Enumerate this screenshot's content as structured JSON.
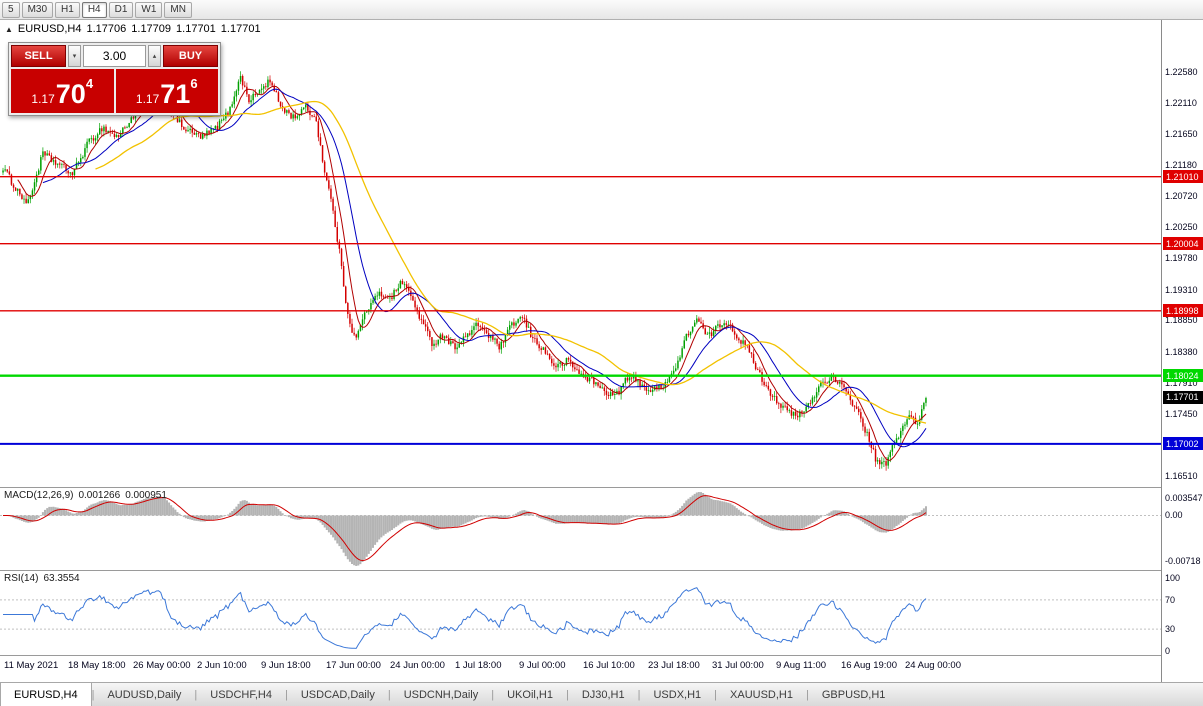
{
  "toolbar": {
    "timeframes": [
      "5",
      "M30",
      "H1",
      "H4",
      "D1",
      "W1",
      "MN"
    ],
    "active": "H4"
  },
  "quote_header": {
    "expand_icon": "▲",
    "symbol": "EURUSD,H4",
    "open": "1.17706",
    "high": "1.17709",
    "low": "1.17701",
    "close": "1.17701"
  },
  "trade_panel": {
    "sell_label": "SELL",
    "buy_label": "BUY",
    "volume": "3.00",
    "spin_down": "▾",
    "spin_up": "▴",
    "sell_price": {
      "base": "1.17",
      "pips": "70",
      "point": "4"
    },
    "buy_price": {
      "base": "1.17",
      "pips": "71",
      "point": "6"
    }
  },
  "price_axis": {
    "ticks": [
      "1.22580",
      "1.22110",
      "1.21650",
      "1.21180",
      "1.20720",
      "1.20250",
      "1.19780",
      "1.19310",
      "1.18850",
      "1.18380",
      "1.17910",
      "1.17450",
      "1.16980",
      "1.16510"
    ]
  },
  "price_lines": [
    {
      "price": 1.2101,
      "label": "1.21010",
      "color": "#e00000",
      "width": 1.4
    },
    {
      "price": 1.20004,
      "label": "1.20004",
      "color": "#e00000",
      "width": 1.4
    },
    {
      "price": 1.18998,
      "label": "1.18998",
      "color": "#e00000",
      "width": 1.4
    },
    {
      "price": 1.18024,
      "label": "1.18024",
      "color": "#00d800",
      "width": 2.4
    },
    {
      "price": 1.17002,
      "label": "1.17002",
      "color": "#0000d8",
      "width": 2
    }
  ],
  "current_price": {
    "price": 1.17701,
    "label": "1.17701",
    "bg": "#000000"
  },
  "indicators": {
    "macd": {
      "label": "MACD(12,26,9)",
      "value_main": "0.001266",
      "value_signal": "0.000951",
      "axis": [
        "0.003547",
        "0.00",
        "-0.00718"
      ]
    },
    "rsi": {
      "label": "RSI(14)",
      "value": "63.3554",
      "axis": [
        "100",
        "70",
        "30",
        "0"
      ]
    }
  },
  "time_axis": {
    "labels": [
      "11 May 2021",
      "18 May 18:00",
      "26 May 00:00",
      "2 Jun 10:00",
      "9 Jun 18:00",
      "17 Jun 00:00",
      "24 Jun 00:00",
      "1 Jul 18:00",
      "9 Jul 00:00",
      "16 Jul 10:00",
      "23 Jul 18:00",
      "31 Jul 00:00",
      "9 Aug 11:00",
      "16 Aug 19:00",
      "24 Aug 00:00"
    ]
  },
  "tabs": {
    "items": [
      "EURUSD,H4",
      "AUDUSD,Daily",
      "USDCHF,H4",
      "USDCAD,Daily",
      "USDCNH,Daily",
      "UKOil,H1",
      "DJ30,H1",
      "USDX,H1",
      "XAUUSD,H1",
      "GBPUSD,H1"
    ],
    "active_index": 0
  },
  "theme": {
    "up": "#00a000",
    "down": "#d40000",
    "macd_hist": "#b4b4b4",
    "macd_signal": "#d00000",
    "rsi_line": "#3c78d8",
    "level_line": "#c0c0c0",
    "axis_text": "#05051e"
  },
  "chart_data": {
    "type": "candlestick",
    "symbol": "EURUSD",
    "timeframe": "H4",
    "visible_range": {
      "price_min": 1.1651,
      "price_max": 1.2258,
      "time_start": "11 May 2021",
      "time_end": "24 Aug 2021"
    },
    "candle_count": 440,
    "price_anchors": [
      [
        0,
        1.2115
      ],
      [
        12,
        1.2085
      ],
      [
        25,
        1.206
      ],
      [
        40,
        1.2135
      ],
      [
        55,
        1.212
      ],
      [
        70,
        1.2105
      ],
      [
        85,
        1.215
      ],
      [
        100,
        1.2175
      ],
      [
        115,
        1.216
      ],
      [
        130,
        1.219
      ],
      [
        145,
        1.222
      ],
      [
        160,
        1.2235
      ],
      [
        172,
        1.219
      ],
      [
        185,
        1.217
      ],
      [
        200,
        1.216
      ],
      [
        215,
        1.2175
      ],
      [
        228,
        1.22
      ],
      [
        238,
        1.2252
      ],
      [
        248,
        1.2215
      ],
      [
        258,
        1.223
      ],
      [
        268,
        1.2245
      ],
      [
        280,
        1.2205
      ],
      [
        292,
        1.219
      ],
      [
        305,
        1.2205
      ],
      [
        315,
        1.2185
      ],
      [
        322,
        1.212
      ],
      [
        330,
        1.2065
      ],
      [
        338,
        1.199
      ],
      [
        346,
        1.19
      ],
      [
        354,
        1.1855
      ],
      [
        365,
        1.19
      ],
      [
        378,
        1.1925
      ],
      [
        390,
        1.192
      ],
      [
        402,
        1.1945
      ],
      [
        412,
        1.1915
      ],
      [
        422,
        1.188
      ],
      [
        432,
        1.185
      ],
      [
        443,
        1.1865
      ],
      [
        453,
        1.1845
      ],
      [
        465,
        1.186
      ],
      [
        478,
        1.188
      ],
      [
        490,
        1.186
      ],
      [
        500,
        1.1845
      ],
      [
        512,
        1.188
      ],
      [
        522,
        1.189
      ],
      [
        532,
        1.186
      ],
      [
        544,
        1.184
      ],
      [
        556,
        1.1815
      ],
      [
        568,
        1.1825
      ],
      [
        580,
        1.1805
      ],
      [
        592,
        1.1795
      ],
      [
        604,
        1.178
      ],
      [
        616,
        1.1772
      ],
      [
        628,
        1.18
      ],
      [
        640,
        1.1792
      ],
      [
        652,
        1.1778
      ],
      [
        664,
        1.179
      ],
      [
        676,
        1.1812
      ],
      [
        688,
        1.1865
      ],
      [
        698,
        1.1888
      ],
      [
        708,
        1.186
      ],
      [
        718,
        1.1875
      ],
      [
        728,
        1.1885
      ],
      [
        738,
        1.1862
      ],
      [
        750,
        1.184
      ],
      [
        762,
        1.18
      ],
      [
        774,
        1.1772
      ],
      [
        786,
        1.1752
      ],
      [
        798,
        1.174
      ],
      [
        810,
        1.1758
      ],
      [
        822,
        1.179
      ],
      [
        832,
        1.18
      ],
      [
        842,
        1.1788
      ],
      [
        852,
        1.1768
      ],
      [
        862,
        1.174
      ],
      [
        872,
        1.17
      ],
      [
        880,
        1.1668
      ],
      [
        888,
        1.1672
      ],
      [
        896,
        1.17
      ],
      [
        904,
        1.1725
      ],
      [
        912,
        1.1742
      ],
      [
        920,
        1.1728
      ],
      [
        928,
        1.177
      ]
    ],
    "moving_averages": [
      {
        "period": 8,
        "color": "#b00000",
        "width": 1
      },
      {
        "period": 20,
        "color": "#0000c0",
        "width": 1
      },
      {
        "period": 45,
        "color": "#f2c200",
        "width": 1.3
      }
    ],
    "macd": {
      "fast": 12,
      "slow": 26,
      "signal": 9,
      "last_main": 0.001266,
      "last_signal": 0.000951,
      "axis_max": 0.003547,
      "axis_min": -0.00718
    },
    "rsi": {
      "period": 14,
      "last_value": 63.3554,
      "levels": [
        70,
        30
      ],
      "range": [
        0,
        100
      ]
    }
  }
}
